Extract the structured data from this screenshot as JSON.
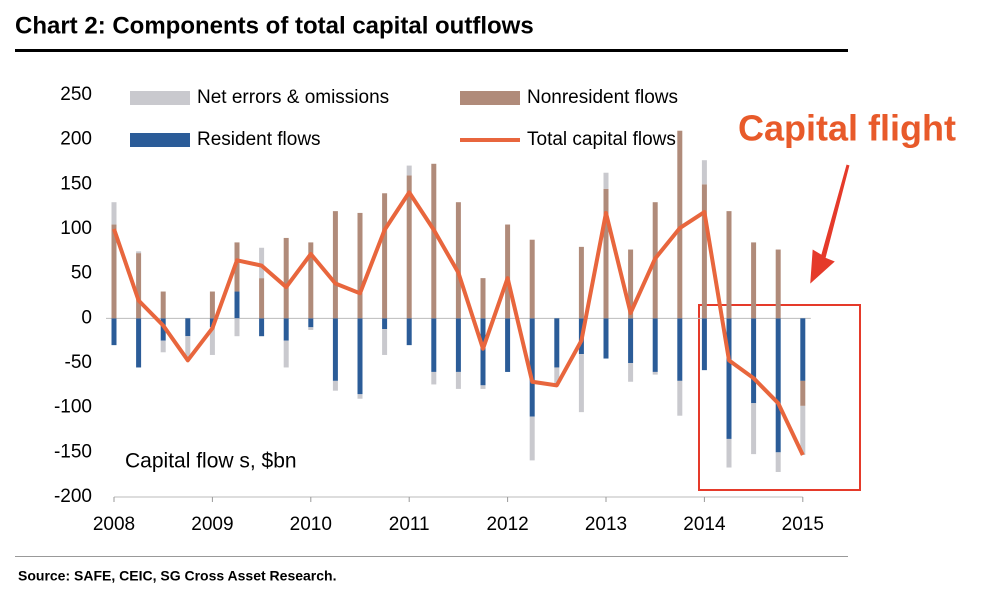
{
  "chart_data": {
    "type": "bar",
    "stacked": true,
    "title": "Chart 2: Components of total capital outflows",
    "y_label": "Capital flow s, $bn",
    "annotation": "Capital flight",
    "source": "Source: SAFE, CEIC, SG Cross Asset Research.",
    "categories": [
      "2008",
      null,
      null,
      null,
      "2009",
      null,
      null,
      null,
      "2010",
      null,
      null,
      null,
      "2011",
      null,
      null,
      null,
      "2012",
      null,
      null,
      null,
      "2013",
      null,
      null,
      null,
      "2014",
      null,
      null,
      null,
      "2015"
    ],
    "ylim": [
      -200,
      250
    ],
    "yticks": [
      -200,
      -150,
      -100,
      -50,
      0,
      50,
      100,
      150,
      200,
      250
    ],
    "series": [
      {
        "name": "Resident flows",
        "color": "#2b5c98",
        "type": "bar",
        "values": [
          -30,
          -55,
          -25,
          -20,
          -10,
          30,
          -20,
          -25,
          -10,
          -70,
          -85,
          -12,
          -30,
          -60,
          -60,
          -75,
          -60,
          -110,
          -55,
          -40,
          -45,
          -50,
          -60,
          -70,
          -58,
          -135,
          -95,
          -150,
          -70
        ]
      },
      {
        "name": "Nonresident flows",
        "color": "#b08b7a",
        "type": "bar",
        "values": [
          105,
          73,
          30,
          0,
          30,
          55,
          45,
          90,
          85,
          120,
          118,
          140,
          160,
          173,
          130,
          45,
          105,
          88,
          0,
          80,
          145,
          77,
          130,
          210,
          150,
          120,
          85,
          77,
          -28
        ]
      },
      {
        "name": "Net errors & omissions",
        "color": "#c9c9ce",
        "type": "bar",
        "values": [
          25,
          2,
          -13,
          -27,
          -31,
          -20,
          34,
          -30,
          -3,
          -11,
          -5,
          -29,
          11,
          -14,
          -19,
          -4,
          0,
          -49,
          -20,
          -65,
          18,
          -21,
          -3,
          -39,
          27,
          -32,
          -57,
          -22,
          -55
        ]
      },
      {
        "name": "Total capital flows",
        "color": "#e8663d",
        "type": "line",
        "values": [
          100,
          20,
          -8,
          -47,
          -11,
          65,
          59,
          35,
          72,
          39,
          28,
          99,
          141,
          99,
          51,
          -34,
          45,
          -71,
          -75,
          -25,
          118,
          6,
          67,
          101,
          119,
          -47,
          -67,
          -95,
          -153
        ]
      }
    ]
  }
}
